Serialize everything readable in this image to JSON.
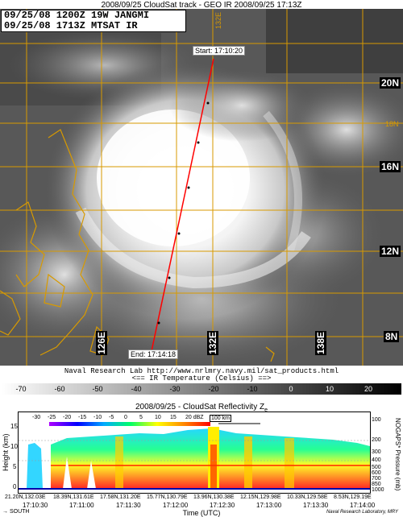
{
  "header": {
    "title": "2008/09/25  CloudSat track - GEO IR   2008/09/25  17:13Z"
  },
  "info_box": {
    "line1": "09/25/08  1200Z   19W JANGMI",
    "line2": "09/25/08  1713Z   MTSAT IR"
  },
  "map": {
    "lat_labels": [
      "20N",
      "16N",
      "12N",
      "8N"
    ],
    "lon_labels": [
      "126E",
      "132E",
      "138E"
    ],
    "faded_labels": [
      "18N",
      "132E"
    ],
    "track_start_label": "Start: 17:10:20",
    "track_end_label": "End: 17:14:18",
    "track_color": "#ff0000",
    "coast_color": "#d89a00",
    "grid_color": "#d89a00"
  },
  "footer": {
    "nrl_line": "Naval Research Lab http://www.nrlmry.navy.mil/sat_products.html",
    "ir_temp_line": "<==     IR Temperature (Celsius)     ==>",
    "colorbar_ticks": [
      "-70",
      "-60",
      "-50",
      "-40",
      "-30",
      "-20",
      "-10",
      "0",
      "10",
      "20"
    ]
  },
  "cloudsat": {
    "title": "2008/09/25 - CloudSat Reflectivity Z",
    "title_sub": "e",
    "reflectivity_ticks": [
      "-30",
      "-25",
      "-20",
      "-15",
      "-10",
      "-5",
      "0",
      "5",
      "10",
      "15",
      "20 dBZ"
    ],
    "scale_label": "100 km",
    "y_label": "Height (km)",
    "y_ticks": [
      "15",
      "10",
      "5",
      "0"
    ],
    "y2_label": "NOGAPS* Pressure (mb)",
    "pressure_ticks": [
      "100",
      "200",
      "300",
      "400",
      "500",
      "600",
      "700",
      "850",
      "1000"
    ],
    "x_coords": [
      "21.20N,132.03E",
      "18.39N,131.61E",
      "17.58N,131.20E",
      "15.77N,130.79E",
      "13.96N,130.38E",
      "12.15N,129.98E",
      "10.33N,129.58E",
      "8.53N,129.19E"
    ],
    "x_times": [
      "17:10:30",
      "17:11:00",
      "17:11:30",
      "17:12:00",
      "17:12:30",
      "17:13:00",
      "17:13:30",
      "17:14:00"
    ],
    "x_title": "Time (UTC)",
    "direction_label": "SOUTH",
    "credit": "Naval Research Laboratory, MRY"
  }
}
